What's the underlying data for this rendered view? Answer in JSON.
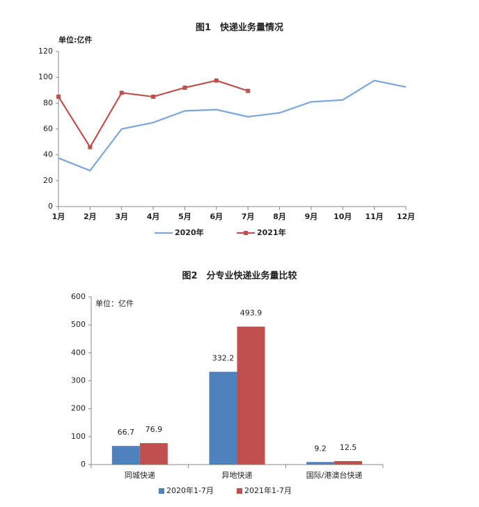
{
  "chart_data": [
    {
      "type": "line",
      "title": "图1　快递业务量情况",
      "y_label": "单位:亿件",
      "categories": [
        "1月",
        "2月",
        "3月",
        "4月",
        "5月",
        "6月",
        "7月",
        "8月",
        "9月",
        "10月",
        "11月",
        "12月"
      ],
      "series": [
        {
          "name": "2020年",
          "color": "#7aa6e0",
          "values": [
            37.5,
            27.8,
            60,
            65,
            74,
            75,
            69.5,
            72.5,
            81,
            82.5,
            97.5,
            92.5
          ]
        },
        {
          "name": "2021年",
          "color": "#c0504d",
          "values": [
            85,
            46,
            88,
            85,
            92,
            97.5,
            89.5,
            null,
            null,
            null,
            null,
            null
          ]
        }
      ],
      "ylim": [
        0,
        120
      ],
      "yticks": [
        0,
        20,
        40,
        60,
        80,
        100,
        120
      ]
    },
    {
      "type": "bar",
      "title": "图2　分专业快递业务量比较",
      "y_label": "单位：亿件",
      "categories": [
        "同城快递",
        "异地快递",
        "国际/港澳台快递"
      ],
      "series": [
        {
          "name": "2020年1-7月",
          "color": "#4f81bd",
          "values": [
            66.7,
            332.2,
            9.2
          ]
        },
        {
          "name": "2021年1-7月",
          "color": "#c0504d",
          "values": [
            76.9,
            493.9,
            12.5
          ]
        }
      ],
      "ylim": [
        0,
        600
      ],
      "yticks": [
        0,
        100,
        200,
        300,
        400,
        500,
        600
      ]
    }
  ]
}
